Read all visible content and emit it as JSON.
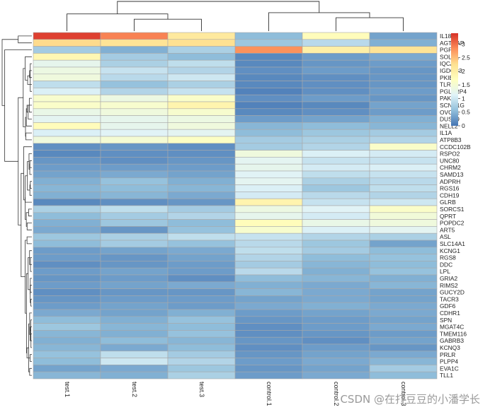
{
  "chart_data": {
    "type": "heatmap",
    "title": "",
    "samples": [
      "test.1",
      "test.2",
      "test.3",
      "control.1",
      "control.2",
      "control.3"
    ],
    "genes": [
      "IL18",
      "AGTRAP",
      "PGF",
      "SOLD1",
      "IQCA1",
      "IGDCC3",
      "PKIB",
      "TLR5",
      "PGLYRP4",
      "PAK6",
      "SCNN1G",
      "OVOL1",
      "DUSP9",
      "NELL2",
      "IL1A",
      "ATP8B3",
      "CCDC102B",
      "RSPO2",
      "UNC80",
      "CHRM2",
      "SAMD13",
      "ADPRH",
      "RGS16",
      "CDH19",
      "GLRB",
      "SORCS1",
      "QPRT",
      "POPDC2",
      "ART5",
      "ASL",
      "SLC14A1",
      "KCNG1",
      "RGS8",
      "DDC",
      "LPL",
      "GRIA2",
      "RIMS2",
      "GUCY2D",
      "TACR3",
      "GDF6",
      "CDHR1",
      "SPN",
      "MGAT4C",
      "TMEM116",
      "GABRB3",
      "KCNQ3",
      "PRLR",
      "PLPP4",
      "EVA1C",
      "TLL1"
    ],
    "values": [
      [
        3.3,
        2.9,
        2.1,
        0.55,
        1.75,
        0.35
      ],
      [
        2.3,
        2.2,
        2.25,
        0.65,
        0.85,
        0.45
      ],
      [
        0.7,
        0.45,
        0.75,
        2.8,
        2.0,
        2.2
      ],
      [
        1.85,
        0.7,
        0.55,
        0.15,
        0.3,
        0.4
      ],
      [
        1.25,
        0.75,
        0.9,
        0.15,
        0.25,
        0.3
      ],
      [
        1.35,
        0.95,
        0.8,
        0.2,
        0.3,
        0.25
      ],
      [
        1.4,
        0.85,
        1.0,
        0.15,
        0.2,
        0.25
      ],
      [
        0.9,
        0.6,
        0.75,
        0.15,
        0.2,
        0.25
      ],
      [
        1.1,
        0.8,
        0.95,
        0.1,
        0.2,
        0.3
      ],
      [
        1.55,
        1.35,
        1.6,
        0.2,
        0.3,
        0.25
      ],
      [
        1.6,
        1.55,
        1.9,
        0.1,
        0.15,
        0.35
      ],
      [
        1.3,
        1.4,
        1.55,
        0.15,
        0.2,
        0.3
      ],
      [
        1.2,
        1.25,
        1.35,
        0.3,
        0.35,
        0.45
      ],
      [
        1.75,
        1.25,
        1.4,
        0.5,
        0.55,
        0.5
      ],
      [
        1.1,
        1.15,
        1.2,
        0.55,
        0.65,
        0.7
      ],
      [
        1.4,
        1.5,
        1.65,
        0.7,
        0.75,
        0.8
      ],
      [
        0.2,
        0.25,
        0.2,
        0.7,
        0.8,
        1.6
      ],
      [
        0.15,
        0.2,
        0.2,
        1.4,
        1.1,
        1.05
      ],
      [
        0.25,
        0.2,
        0.25,
        1.2,
        0.95,
        0.95
      ],
      [
        0.3,
        0.3,
        0.3,
        1.25,
        1.05,
        1.1
      ],
      [
        0.35,
        0.4,
        0.35,
        1.15,
        0.9,
        0.95
      ],
      [
        0.45,
        0.6,
        0.45,
        1.2,
        0.75,
        0.85
      ],
      [
        0.5,
        0.55,
        0.5,
        1.1,
        0.65,
        0.9
      ],
      [
        0.45,
        0.5,
        0.4,
        1.05,
        0.85,
        0.8
      ],
      [
        0.15,
        0.2,
        0.25,
        1.9,
        0.95,
        1.0
      ],
      [
        0.75,
        0.9,
        0.7,
        1.35,
        1.15,
        1.6
      ],
      [
        0.55,
        0.7,
        0.8,
        1.25,
        1.05,
        1.45
      ],
      [
        0.45,
        0.65,
        0.55,
        1.75,
        1.3,
        1.4
      ],
      [
        0.4,
        0.25,
        0.6,
        1.55,
        1.1,
        1.2
      ],
      [
        0.65,
        0.75,
        0.9,
        0.95,
        0.8,
        0.75
      ],
      [
        0.55,
        0.7,
        0.6,
        0.85,
        0.65,
        0.35
      ],
      [
        0.3,
        0.35,
        0.4,
        0.9,
        0.7,
        0.55
      ],
      [
        0.3,
        0.25,
        0.35,
        0.8,
        0.55,
        0.6
      ],
      [
        0.2,
        0.25,
        0.3,
        0.7,
        0.5,
        0.55
      ],
      [
        0.3,
        0.35,
        0.3,
        0.85,
        0.45,
        0.6
      ],
      [
        0.25,
        0.3,
        0.2,
        0.55,
        0.5,
        0.45
      ],
      [
        0.3,
        0.35,
        0.4,
        0.45,
        0.4,
        0.5
      ],
      [
        0.2,
        0.25,
        0.25,
        0.5,
        0.4,
        0.35
      ],
      [
        0.25,
        0.3,
        0.3,
        0.35,
        0.4,
        0.35
      ],
      [
        0.3,
        0.35,
        0.3,
        0.4,
        0.45,
        0.4
      ],
      [
        0.4,
        0.35,
        0.45,
        0.3,
        0.35,
        0.4
      ],
      [
        0.55,
        0.45,
        0.6,
        0.25,
        0.3,
        0.35
      ],
      [
        0.65,
        0.5,
        0.55,
        0.2,
        0.3,
        0.4
      ],
      [
        0.5,
        0.45,
        0.6,
        0.2,
        0.25,
        0.3
      ],
      [
        0.45,
        0.55,
        0.5,
        0.25,
        0.2,
        0.35
      ],
      [
        0.5,
        0.4,
        0.55,
        0.2,
        0.3,
        0.25
      ],
      [
        0.6,
        0.9,
        0.7,
        0.25,
        0.35,
        0.4
      ],
      [
        0.55,
        1.0,
        0.8,
        0.3,
        0.4,
        0.5
      ],
      [
        0.35,
        0.4,
        0.65,
        0.25,
        0.35,
        0.7
      ],
      [
        0.5,
        0.45,
        0.75,
        0.3,
        0.4,
        0.55
      ]
    ],
    "color_scale": {
      "min": 0,
      "max": 3.4,
      "colors": [
        "#4575b4",
        "#91bfdb",
        "#e0f3f8",
        "#ffffbf",
        "#fee090",
        "#fc8d59",
        "#d73027"
      ]
    },
    "legend": {
      "placement": "right",
      "ticks": [
        0,
        0.5,
        1,
        1.5,
        2,
        2.5,
        3
      ],
      "tick_labels": [
        "0",
        "0.5",
        "1",
        "1.5",
        "2",
        "2.5",
        "3"
      ]
    },
    "column_tree": {
      "order": [
        "test.1",
        "test.2",
        "test.3",
        "control.1",
        "control.2",
        "control.3"
      ],
      "merges": [
        [
          1,
          2,
          0.4
        ],
        [
          0,
          -1,
          0.58
        ],
        [
          4,
          5,
          0.45
        ],
        [
          3,
          -3,
          0.62
        ],
        [
          -2,
          -4,
          1.0
        ]
      ]
    }
  },
  "watermark": "CSDN @在打豆豆的小潘学长"
}
